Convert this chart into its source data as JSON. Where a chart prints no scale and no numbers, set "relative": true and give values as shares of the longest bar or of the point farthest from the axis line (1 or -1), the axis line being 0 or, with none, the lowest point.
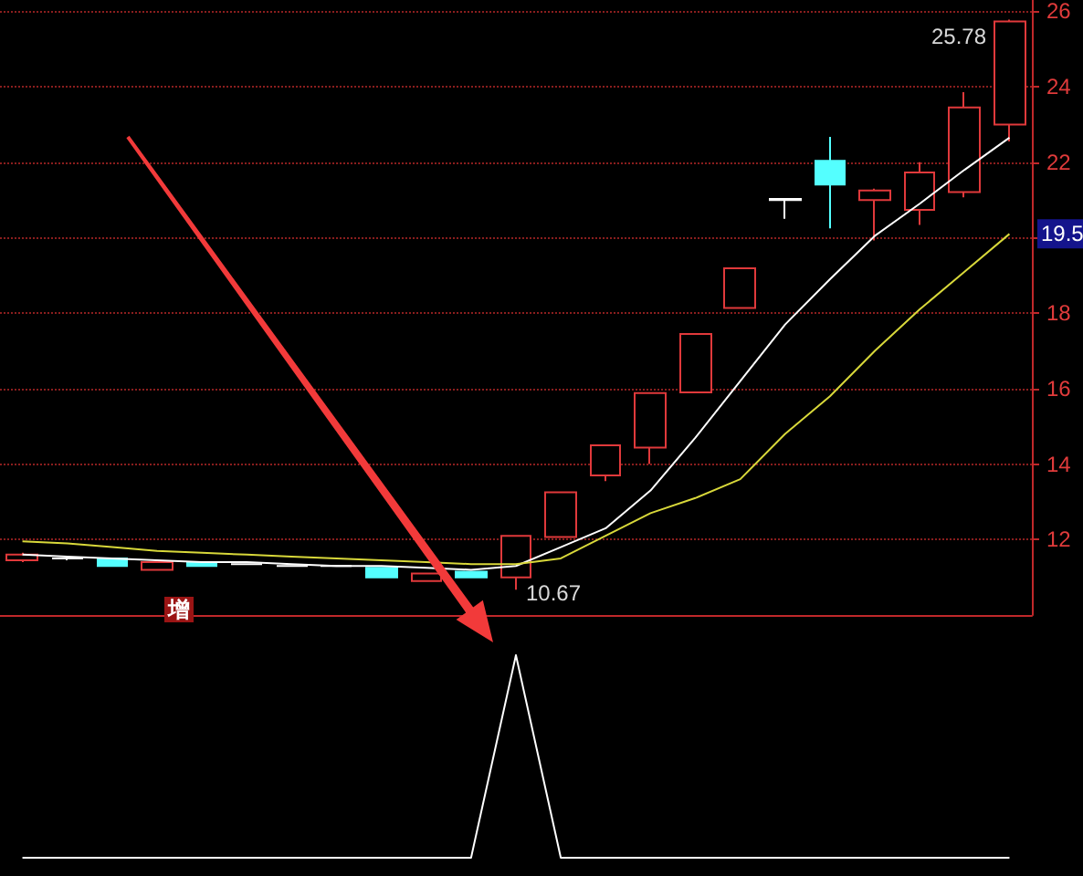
{
  "chart_data": [
    {
      "type": "candlestick",
      "categories": [
        null,
        null,
        null,
        null,
        null,
        null,
        null,
        null,
        null,
        null,
        null,
        null,
        null,
        null,
        null,
        null,
        null,
        null,
        null,
        null,
        null,
        null,
        null
      ],
      "ohlc": [
        [
          11.45,
          11.65,
          11.4,
          11.6
        ],
        [
          11.5,
          11.55,
          11.45,
          11.5
        ],
        [
          11.5,
          11.5,
          11.3,
          11.3
        ],
        [
          11.2,
          11.4,
          11.2,
          11.4
        ],
        [
          11.4,
          11.4,
          11.3,
          11.3
        ],
        [
          11.35,
          11.35,
          11.35,
          11.35
        ],
        [
          11.3,
          11.3,
          11.3,
          11.3
        ],
        [
          11.3,
          11.3,
          11.3,
          11.3
        ],
        [
          11.25,
          11.25,
          11.0,
          11.0
        ],
        [
          10.9,
          11.1,
          10.9,
          11.1
        ],
        [
          11.15,
          11.15,
          11.0,
          11.0
        ],
        [
          11.0,
          12.1,
          10.67,
          12.1
        ],
        [
          12.07,
          13.25,
          12.07,
          13.25
        ],
        [
          13.7,
          14.5,
          13.55,
          14.5
        ],
        [
          14.44,
          15.88,
          14.0,
          15.88
        ],
        [
          15.9,
          17.45,
          15.9,
          17.45
        ],
        [
          18.14,
          19.19,
          18.14,
          19.19
        ],
        [
          21.03,
          21.03,
          20.5,
          21.0
        ],
        [
          22.04,
          22.67,
          20.25,
          21.41
        ],
        [
          21.0,
          21.3,
          19.93,
          21.25
        ],
        [
          20.74,
          22.0,
          20.34,
          21.73
        ],
        [
          21.21,
          23.86,
          21.07,
          23.45
        ],
        [
          23.0,
          25.78,
          22.55,
          25.73
        ]
      ],
      "colors": [
        "#e0393b",
        "#ffffff",
        "#54ffff",
        "#e0393b",
        "#54ffff",
        "#ffffff",
        "#ffffff",
        "#ffffff",
        "#54ffff",
        "#e0393b",
        "#54ffff",
        "#e0393b",
        "#e0393b",
        "#e0393b",
        "#e0393b",
        "#e0393b",
        "#e0393b",
        "#ffffff",
        "#54ffff",
        "#e0393b",
        "#e0393b",
        "#e0393b",
        "#e0393b"
      ],
      "series": [
        {
          "type": "line",
          "color": "#ffffff",
          "values": [
            11.6,
            11.55,
            11.5,
            11.45,
            11.4,
            11.4,
            11.35,
            11.3,
            11.3,
            11.25,
            11.2,
            11.3,
            11.8,
            12.3,
            13.3,
            14.7,
            16.2,
            17.7,
            18.9,
            20.05,
            20.9,
            21.8,
            22.65
          ]
        },
        {
          "type": "line",
          "color": "#d8d83a",
          "values": [
            11.95,
            11.9,
            11.8,
            11.7,
            11.65,
            11.6,
            11.55,
            11.5,
            11.45,
            11.4,
            11.35,
            11.35,
            11.5,
            12.1,
            12.7,
            13.1,
            13.6,
            14.8,
            15.8,
            17.0,
            18.1,
            19.1,
            20.1
          ]
        }
      ],
      "marker": "none",
      "ylim": [
        10,
        26.3
      ],
      "yticks": [
        12,
        14,
        16,
        18,
        {
          "value": 20,
          "label": null
        },
        22,
        24,
        26
      ],
      "grid": "y",
      "annotations": [
        "25.78",
        "10.67",
        {
          "text": "19.5",
          "y": 20.1
        },
        "增"
      ]
    },
    {
      "type": "line",
      "categories": [
        null,
        null,
        null,
        null,
        null,
        null,
        null,
        null,
        null,
        null,
        null,
        null,
        null,
        null,
        null,
        null,
        null,
        null,
        null,
        null,
        null,
        null,
        null
      ],
      "values": [
        0,
        0,
        0,
        0,
        0,
        0,
        0,
        0,
        0,
        0,
        0,
        1,
        0,
        0,
        0,
        0,
        0,
        0,
        0,
        0,
        0,
        0,
        0
      ],
      "color": "#ffffff",
      "relative": true,
      "marker": "none"
    }
  ]
}
